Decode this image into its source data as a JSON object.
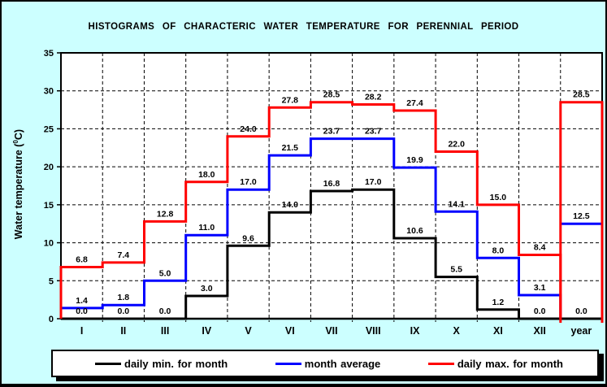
{
  "frame": {
    "background": "#CCFFFF",
    "border_color": "#000000",
    "plot_background": "#FFFFFF"
  },
  "title": "HISTOGRAMS OF CHARACTERIC WATER TEMPERATURE FOR PERENNIAL PERIOD",
  "y_axis": {
    "label_prefix": "Water temperature (",
    "label_sup": "0",
    "label_suffix": "C)",
    "ticks": [
      0,
      5,
      10,
      15,
      20,
      25,
      30,
      35
    ],
    "min": 0,
    "max": 35
  },
  "chart_data": {
    "type": "line",
    "subtype": "step-histogram-outline",
    "title": "HISTOGRAMS OF CHARACTERIC WATER TEMPERATURE FOR PERENNIAL PERIOD",
    "xlabel": "",
    "ylabel": "Water temperature (0C)",
    "ylim": [
      0,
      35
    ],
    "grid": "dashed",
    "legend_position": "bottom",
    "categories": [
      "I",
      "II",
      "III",
      "IV",
      "V",
      "VI",
      "VII",
      "VIII",
      "IX",
      "X",
      "XI",
      "XII",
      "year"
    ],
    "series": [
      {
        "id": "daily-min",
        "name": "daily min. for month",
        "color": "#000000",
        "values": [
          0.0,
          0.0,
          0.0,
          3.0,
          9.6,
          14.0,
          16.8,
          17.0,
          10.6,
          5.5,
          1.2,
          0.0,
          0.0
        ]
      },
      {
        "id": "month-average",
        "name": "month average",
        "color": "#0000FF",
        "values": [
          1.4,
          1.8,
          5.0,
          11.0,
          17.0,
          21.5,
          23.7,
          23.7,
          19.9,
          14.1,
          8.0,
          3.1,
          12.5
        ]
      },
      {
        "id": "daily-max",
        "name": "daily max. for month",
        "color": "#FF0000",
        "values": [
          6.8,
          7.4,
          12.8,
          18.0,
          24.0,
          27.8,
          28.5,
          28.2,
          27.4,
          22.0,
          15.0,
          8.4,
          28.5
        ]
      }
    ]
  },
  "legend": {
    "items": [
      {
        "label": "daily min. for month",
        "color": "#000000"
      },
      {
        "label": "month average",
        "color": "#0000FF"
      },
      {
        "label": "daily max. for month",
        "color": "#FF0000"
      }
    ]
  }
}
